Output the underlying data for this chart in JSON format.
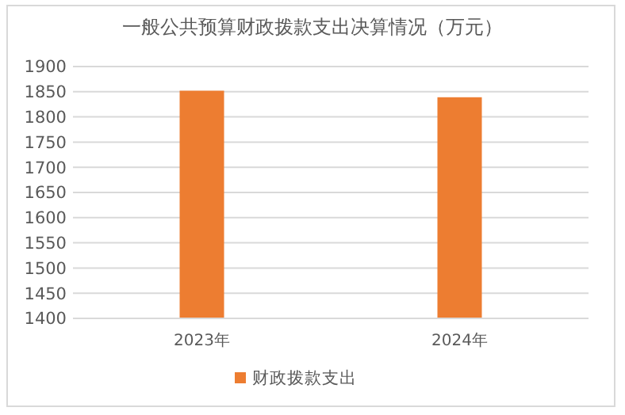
{
  "chart_data": {
    "type": "bar",
    "title": "一般公共预算财政拨款支出决算情况（万元）",
    "categories": [
      "2023年",
      "2024年"
    ],
    "series": [
      {
        "name": "财政拨款支出",
        "color": "#ed7d31",
        "values": [
          1852,
          1839
        ]
      }
    ],
    "ylim": [
      1400,
      1900
    ],
    "yticks": [
      1400,
      1450,
      1500,
      1550,
      1600,
      1650,
      1700,
      1750,
      1800,
      1850,
      1900
    ],
    "grid": "y",
    "legend": "bottom"
  }
}
